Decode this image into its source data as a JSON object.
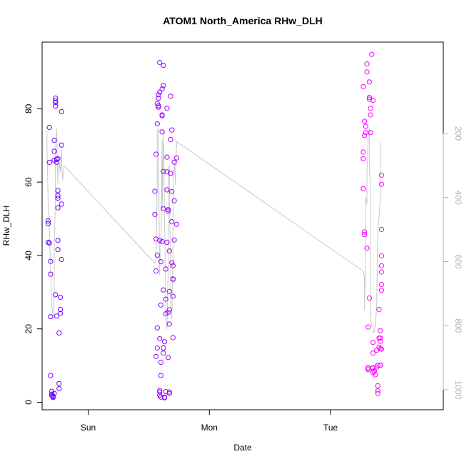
{
  "chart_data": {
    "type": "scatter",
    "title": "ATOM1 North_America RHw_DLH",
    "xlabel": "Date",
    "ylabel": "RHw_DLH",
    "x_tick_labels": [
      "Sun",
      "Mon",
      "Tue"
    ],
    "x_ticks_days": [
      1.0,
      2.0,
      3.0
    ],
    "xlim_days": [
      0.62,
      3.93
    ],
    "ylim": [
      0,
      98
    ],
    "y_ticks": [
      0,
      20,
      40,
      60,
      80
    ],
    "y2_ticks": [
      200,
      400,
      600,
      800,
      1000
    ],
    "y2lim": [
      1010,
      185
    ],
    "y2_reversed": true,
    "grid": false,
    "colors": {
      "early": "#6a00ff",
      "late": "#ff00ff",
      "line": "#c8c8c8"
    },
    "points": [
      [
        0.67,
        49.4
      ],
      [
        0.67,
        48.7
      ],
      [
        0.67,
        43.6
      ],
      [
        0.68,
        43.4
      ],
      [
        0.68,
        74.9
      ],
      [
        0.68,
        65.4
      ],
      [
        0.69,
        38.4
      ],
      [
        0.69,
        34.9
      ],
      [
        0.69,
        23.3
      ],
      [
        0.69,
        7.3
      ],
      [
        0.7,
        3.0
      ],
      [
        0.7,
        2.2
      ],
      [
        0.7,
        1.8
      ],
      [
        0.71,
        1.5
      ],
      [
        0.71,
        1.3
      ],
      [
        0.71,
        1.7
      ],
      [
        0.72,
        2.4
      ],
      [
        0.72,
        66.0
      ],
      [
        0.72,
        68.4
      ],
      [
        0.72,
        71.4
      ],
      [
        0.73,
        80.7
      ],
      [
        0.73,
        81.7
      ],
      [
        0.73,
        82.1
      ],
      [
        0.73,
        82.9
      ],
      [
        0.73,
        29.3
      ],
      [
        0.74,
        23.5
      ],
      [
        0.74,
        66.2
      ],
      [
        0.74,
        65.4
      ],
      [
        0.75,
        66.4
      ],
      [
        0.75,
        57.7
      ],
      [
        0.75,
        56.3
      ],
      [
        0.75,
        55.6
      ],
      [
        0.75,
        53.0
      ],
      [
        0.75,
        44.1
      ],
      [
        0.75,
        41.6
      ],
      [
        0.76,
        18.9
      ],
      [
        0.76,
        5.1
      ],
      [
        0.76,
        3.7
      ],
      [
        0.77,
        28.6
      ],
      [
        0.77,
        25.3
      ],
      [
        0.77,
        24.2
      ],
      [
        0.78,
        54.0
      ],
      [
        0.78,
        70.1
      ],
      [
        0.78,
        79.2
      ],
      [
        0.78,
        38.9
      ],
      [
        1.55,
        57.5
      ],
      [
        1.55,
        51.2
      ],
      [
        1.56,
        67.6
      ],
      [
        1.56,
        44.5
      ],
      [
        1.56,
        35.8
      ],
      [
        1.56,
        12.5
      ],
      [
        1.57,
        14.8
      ],
      [
        1.57,
        20.3
      ],
      [
        1.57,
        40.1
      ],
      [
        1.57,
        75.9
      ],
      [
        1.57,
        81.4
      ],
      [
        1.58,
        82.9
      ],
      [
        1.58,
        83.8
      ],
      [
        1.58,
        80.4
      ],
      [
        1.58,
        80.8
      ],
      [
        1.59,
        84.5
      ],
      [
        1.59,
        92.6
      ],
      [
        1.59,
        44.1
      ],
      [
        1.59,
        17.3
      ],
      [
        1.59,
        2.8
      ],
      [
        1.59,
        1.9
      ],
      [
        1.59,
        3.2
      ],
      [
        1.6,
        1.4
      ],
      [
        1.6,
        7.3
      ],
      [
        1.6,
        10.9
      ],
      [
        1.6,
        26.5
      ],
      [
        1.6,
        38.3
      ],
      [
        1.61,
        43.8
      ],
      [
        1.61,
        73.7
      ],
      [
        1.61,
        78.1
      ],
      [
        1.61,
        78.3
      ],
      [
        1.61,
        85.4
      ],
      [
        1.62,
        86.3
      ],
      [
        1.62,
        91.8
      ],
      [
        1.62,
        62.9
      ],
      [
        1.62,
        52.7
      ],
      [
        1.62,
        30.6
      ],
      [
        1.62,
        13.4
      ],
      [
        1.62,
        14.8
      ],
      [
        1.63,
        16.5
      ],
      [
        1.63,
        1.4
      ],
      [
        1.63,
        1.2
      ],
      [
        1.64,
        2.9
      ],
      [
        1.64,
        24.1
      ],
      [
        1.64,
        28.1
      ],
      [
        1.64,
        36.3
      ],
      [
        1.65,
        43.6
      ],
      [
        1.65,
        57.9
      ],
      [
        1.65,
        62.8
      ],
      [
        1.65,
        66.8
      ],
      [
        1.65,
        80.1
      ],
      [
        1.66,
        52.1
      ],
      [
        1.66,
        52.5
      ],
      [
        1.66,
        24.5
      ],
      [
        1.66,
        12.2
      ],
      [
        1.67,
        2.4
      ],
      [
        1.67,
        2.8
      ],
      [
        1.67,
        21.3
      ],
      [
        1.67,
        25.2
      ],
      [
        1.67,
        30.2
      ],
      [
        1.67,
        41.2
      ],
      [
        1.68,
        62.4
      ],
      [
        1.68,
        71.6
      ],
      [
        1.68,
        83.4
      ],
      [
        1.69,
        74.2
      ],
      [
        1.69,
        57.4
      ],
      [
        1.69,
        49.2
      ],
      [
        1.69,
        38.0
      ],
      [
        1.7,
        37.2
      ],
      [
        1.7,
        33.5
      ],
      [
        1.7,
        33.6
      ],
      [
        1.7,
        28.9
      ],
      [
        1.7,
        17.6
      ],
      [
        1.71,
        44.2
      ],
      [
        1.71,
        54.9
      ],
      [
        1.71,
        65.4
      ],
      [
        1.73,
        48.5
      ],
      [
        1.73,
        66.6
      ],
      [
        3.27,
        86.0
      ],
      [
        3.27,
        66.4
      ],
      [
        3.27,
        68.2
      ],
      [
        3.27,
        58.2
      ],
      [
        3.28,
        76.6
      ],
      [
        3.28,
        72.7
      ],
      [
        3.28,
        46.4
      ],
      [
        3.28,
        45.7
      ],
      [
        3.29,
        73.5
      ],
      [
        3.29,
        75.2
      ],
      [
        3.3,
        92.2
      ],
      [
        3.3,
        90.0
      ],
      [
        3.3,
        42.0
      ],
      [
        3.31,
        20.5
      ],
      [
        3.31,
        8.9
      ],
      [
        3.31,
        9.4
      ],
      [
        3.31,
        9.3
      ],
      [
        3.32,
        28.4
      ],
      [
        3.32,
        82.6
      ],
      [
        3.32,
        87.3
      ],
      [
        3.32,
        83.1
      ],
      [
        3.33,
        78.3
      ],
      [
        3.33,
        80.1
      ],
      [
        3.33,
        73.5
      ],
      [
        3.34,
        94.8
      ],
      [
        3.35,
        82.3
      ],
      [
        3.35,
        16.3
      ],
      [
        3.35,
        13.4
      ],
      [
        3.35,
        9.4
      ],
      [
        3.35,
        9.3
      ],
      [
        3.35,
        8.1
      ],
      [
        3.36,
        8.6
      ],
      [
        3.36,
        8.4
      ],
      [
        3.37,
        7.5
      ],
      [
        3.38,
        14.2
      ],
      [
        3.38,
        9.6
      ],
      [
        3.39,
        10.1
      ],
      [
        3.39,
        2.4
      ],
      [
        3.39,
        3.1
      ],
      [
        3.39,
        4.5
      ],
      [
        3.4,
        17.5
      ],
      [
        3.4,
        25.3
      ],
      [
        3.4,
        15.0
      ],
      [
        3.41,
        10.1
      ],
      [
        3.41,
        14.6
      ],
      [
        3.41,
        16.6
      ],
      [
        3.41,
        17.5
      ],
      [
        3.41,
        19.5
      ],
      [
        3.41,
        10.1
      ],
      [
        3.42,
        14.5
      ],
      [
        3.42,
        59.4
      ],
      [
        3.42,
        61.9
      ],
      [
        3.42,
        47.1
      ],
      [
        3.42,
        39.9
      ],
      [
        3.42,
        37.2
      ],
      [
        3.42,
        35.5
      ],
      [
        3.42,
        32.1
      ],
      [
        3.42,
        30.5
      ]
    ],
    "line": [
      [
        0.66,
        190
      ],
      [
        0.66,
        240
      ],
      [
        0.67,
        420
      ],
      [
        0.67,
        450
      ],
      [
        0.68,
        500
      ],
      [
        0.69,
        620
      ],
      [
        0.7,
        740
      ],
      [
        0.71,
        770
      ],
      [
        0.72,
        690
      ],
      [
        0.72,
        540
      ],
      [
        0.73,
        400
      ],
      [
        0.73,
        320
      ],
      [
        0.73,
        250
      ],
      [
        0.74,
        185
      ],
      [
        0.74,
        200
      ],
      [
        0.75,
        360
      ],
      [
        0.75,
        330
      ],
      [
        0.76,
        290
      ],
      [
        0.77,
        320
      ],
      [
        0.78,
        250
      ],
      [
        0.78,
        280
      ],
      [
        0.78,
        300
      ],
      [
        0.79,
        345
      ],
      [
        0.8,
        300
      ],
      [
        1.55,
        605
      ],
      [
        1.56,
        600
      ],
      [
        1.56,
        580
      ],
      [
        1.57,
        350
      ],
      [
        1.57,
        190
      ],
      [
        1.58,
        185
      ],
      [
        1.58,
        260
      ],
      [
        1.59,
        640
      ],
      [
        1.59,
        600
      ],
      [
        1.6,
        560
      ],
      [
        1.61,
        220
      ],
      [
        1.61,
        440
      ],
      [
        1.62,
        210
      ],
      [
        1.62,
        190
      ],
      [
        1.63,
        470
      ],
      [
        1.64,
        700
      ],
      [
        1.64,
        780
      ],
      [
        1.65,
        810
      ],
      [
        1.66,
        620
      ],
      [
        1.66,
        320
      ],
      [
        1.67,
        300
      ],
      [
        1.67,
        360
      ],
      [
        1.68,
        640
      ],
      [
        1.68,
        720
      ],
      [
        1.69,
        780
      ],
      [
        1.7,
        540
      ],
      [
        1.7,
        330
      ],
      [
        1.71,
        310
      ],
      [
        1.71,
        290
      ],
      [
        1.72,
        360
      ],
      [
        1.72,
        340
      ],
      [
        1.72,
        330
      ],
      [
        1.73,
        225
      ],
      [
        3.27,
        630
      ],
      [
        3.28,
        650
      ],
      [
        3.28,
        700
      ],
      [
        3.28,
        750
      ],
      [
        3.29,
        600
      ],
      [
        3.29,
        400
      ],
      [
        3.3,
        420
      ],
      [
        3.3,
        330
      ],
      [
        3.31,
        215
      ],
      [
        3.32,
        185
      ],
      [
        3.32,
        300
      ],
      [
        3.33,
        380
      ],
      [
        3.33,
        780
      ],
      [
        3.34,
        800
      ],
      [
        3.35,
        800
      ],
      [
        3.35,
        820
      ],
      [
        3.36,
        820
      ],
      [
        3.37,
        800
      ],
      [
        3.38,
        740
      ],
      [
        3.39,
        500
      ],
      [
        3.4,
        460
      ],
      [
        3.41,
        410
      ],
      [
        3.41,
        225
      ]
    ]
  }
}
